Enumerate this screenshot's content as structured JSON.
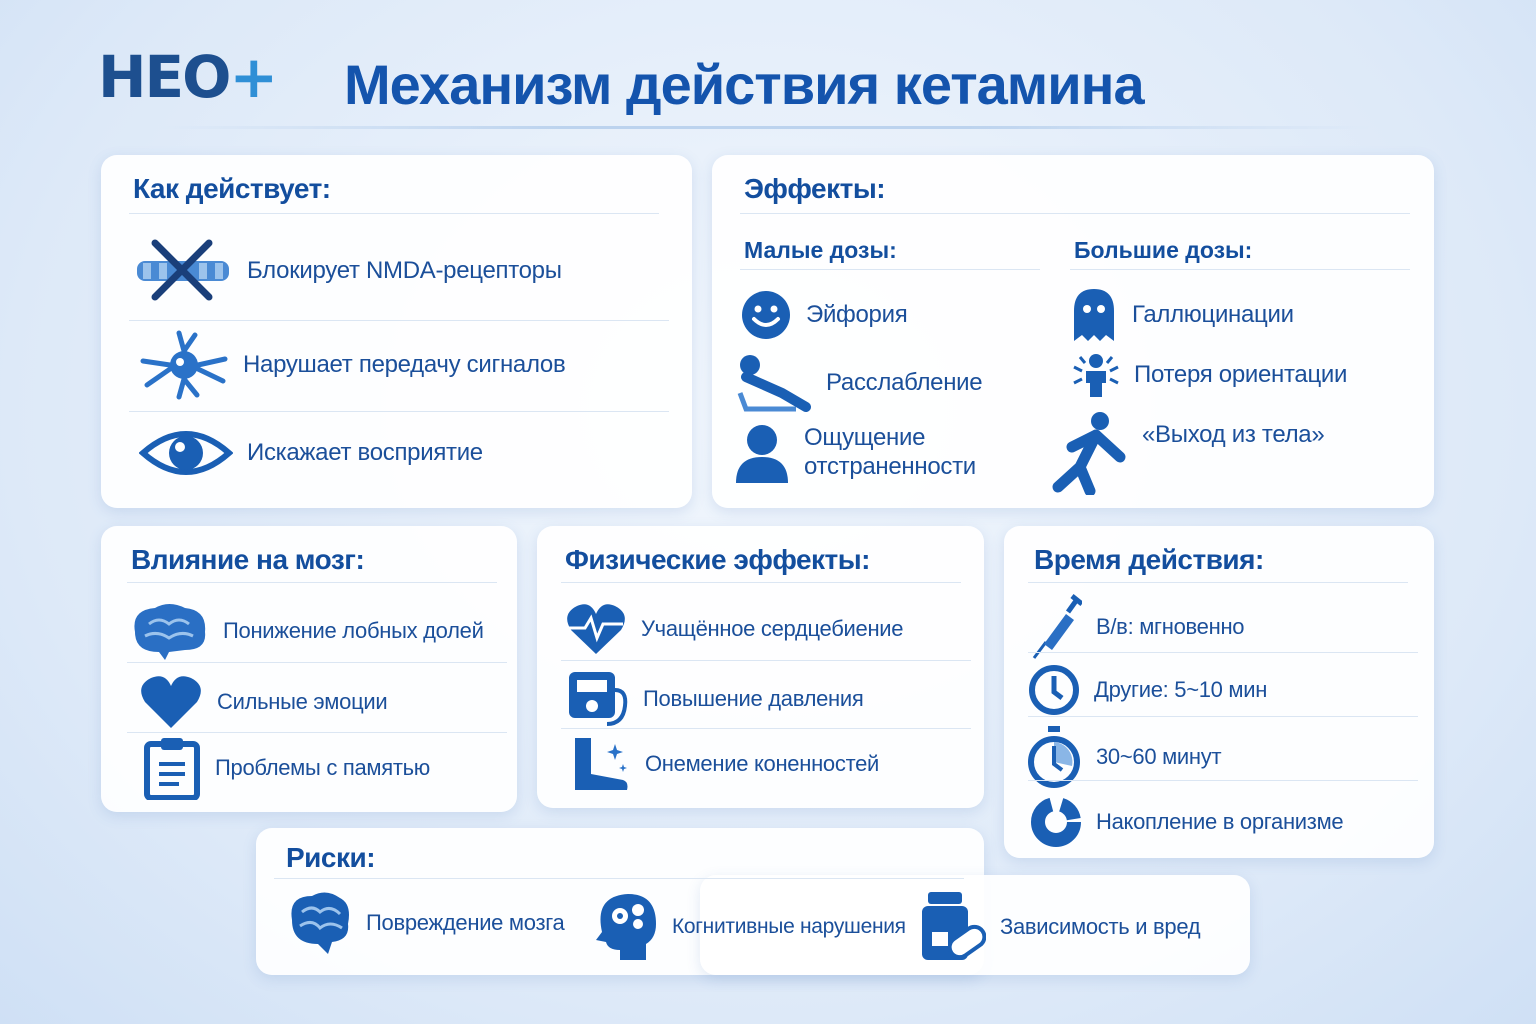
{
  "logo": "НЕО+",
  "title": "Механизм действия кетамина",
  "how": {
    "heading": "Как действует:",
    "items": [
      {
        "icon": "blocked-receptor-icon",
        "text": "Блокирует NMDA-рецепторы"
      },
      {
        "icon": "neuron-icon",
        "text": "Нарушает передачу сигналов"
      },
      {
        "icon": "eye-icon",
        "text": "Искажает восприятие"
      }
    ]
  },
  "effects": {
    "heading": "Эффекты:",
    "low": {
      "heading": "Малые дозы:",
      "items": [
        {
          "icon": "smile-icon",
          "text": "Эйфория"
        },
        {
          "icon": "reclining-person-icon",
          "text": "Расслабление"
        },
        {
          "icon": "person-icon",
          "text": "Ощущение отстраненности"
        }
      ]
    },
    "high": {
      "heading": "Большие дозы:",
      "items": [
        {
          "icon": "ghost-icon",
          "text": "Галлюцинации"
        },
        {
          "icon": "dizzy-person-icon",
          "text": "Потеря ориентации"
        },
        {
          "icon": "floating-person-icon",
          "text": "«Выход из тела»"
        }
      ]
    }
  },
  "brain": {
    "heading": "Влияние на мозг:",
    "items": [
      {
        "icon": "brain-icon",
        "text": "Понижение лобных долей"
      },
      {
        "icon": "heart-icon",
        "text": "Сильные эмоции"
      },
      {
        "icon": "clipboard-icon",
        "text": "Проблемы с памятью"
      }
    ]
  },
  "physical": {
    "heading": "Физические эффекты:",
    "items": [
      {
        "icon": "heartbeat-icon",
        "text": "Учащённое сердцебиение"
      },
      {
        "icon": "blood-pressure-icon",
        "text": "Повышение давления"
      },
      {
        "icon": "numb-foot-icon",
        "text": "Онемение коненностей"
      }
    ]
  },
  "time": {
    "heading": "Время действия:",
    "items": [
      {
        "icon": "syringe-icon",
        "text": "В/в: мгновенно"
      },
      {
        "icon": "clock-icon",
        "text": "Другие: 5~10 мин"
      },
      {
        "icon": "stopwatch-icon",
        "text": "30~60 минут"
      },
      {
        "icon": "accumulation-icon",
        "text": "Накопление в организме"
      }
    ]
  },
  "risks": {
    "heading": "Риски:",
    "items": [
      {
        "icon": "brain-damage-icon",
        "text": "Повреждение мозга"
      },
      {
        "icon": "head-gears-icon",
        "text": "Когнитивные нарушения"
      },
      {
        "icon": "pills-icon",
        "text": "Зависимость и вред"
      }
    ]
  },
  "colors": {
    "primary": "#1454ad",
    "text": "#1b4f9a",
    "icon": "#1a5fb4",
    "background": "#dde9f8"
  }
}
